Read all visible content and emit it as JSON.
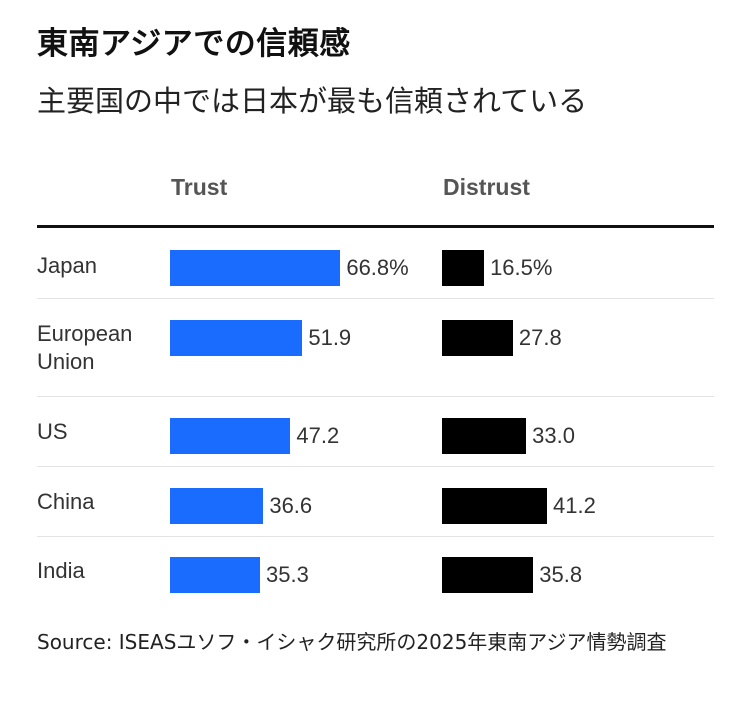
{
  "chart_data": {
    "type": "bar",
    "title": "東南アジアでの信頼感",
    "subtitle": "主要国の中では日本が最も信頼されている",
    "columns": [
      "Trust",
      "Distrust"
    ],
    "categories": [
      [
        "Japan"
      ],
      [
        "European",
        "Union"
      ],
      [
        "US"
      ],
      [
        "China"
      ],
      [
        "India"
      ]
    ],
    "series": [
      {
        "name": "Trust",
        "color": "#1a6cff",
        "values": [
          66.8,
          51.9,
          47.2,
          36.6,
          35.3
        ],
        "labels": [
          "66.8%",
          "51.9",
          "47.2",
          "36.6",
          "35.3"
        ]
      },
      {
        "name": "Distrust",
        "color": "#000000",
        "values": [
          16.5,
          27.8,
          33.0,
          41.2,
          35.8
        ],
        "labels": [
          "16.5%",
          "27.8",
          "33.0",
          "41.2",
          "35.8"
        ]
      }
    ],
    "source": "Source: ISEASユソフ・イシャク研究所の2025年東南アジア情勢調査"
  }
}
